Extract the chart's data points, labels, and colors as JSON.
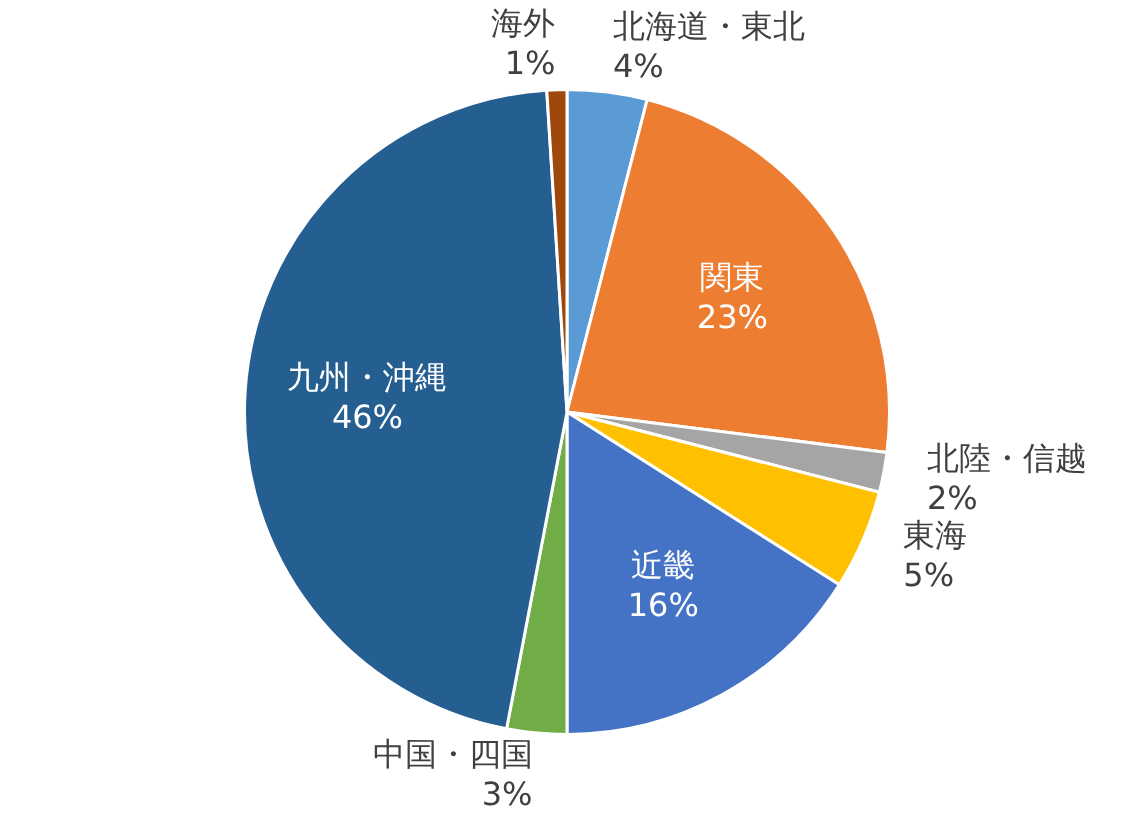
{
  "chart_data": {
    "type": "pie",
    "categories": [
      "北海道・東北",
      "関東",
      "北陸・信越",
      "東海",
      "近畿",
      "中国・四国",
      "九州・沖縄",
      "海外"
    ],
    "values": [
      4,
      23,
      2,
      5,
      16,
      3,
      46,
      1
    ],
    "colors": [
      "#5b9bd5",
      "#ed7d31",
      "#a5a5a5",
      "#ffc000",
      "#4472c4",
      "#70ad47",
      "#255e91",
      "#9e480e"
    ],
    "data_labels": true,
    "value_labels": [
      "4%",
      "23%",
      "2%",
      "5%",
      "16%",
      "3%",
      "46%",
      "1%"
    ],
    "legend": false
  }
}
